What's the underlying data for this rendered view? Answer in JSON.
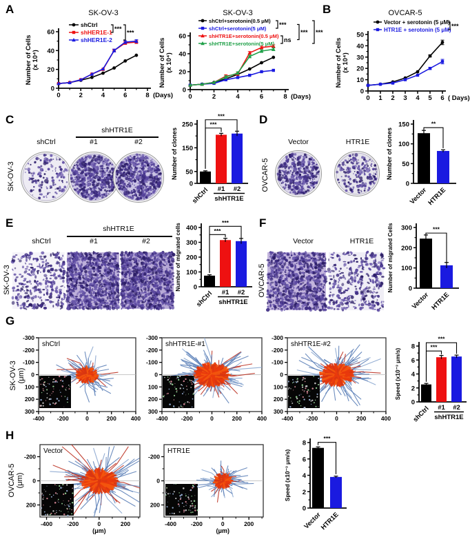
{
  "panels": {
    "A": "A",
    "B": "B",
    "C": "C",
    "D": "D",
    "E": "E",
    "F": "F",
    "G": "G",
    "H": "H"
  },
  "row_labels": {
    "C": "SK-OV-3",
    "D": "OVCAR-5",
    "E": "SK-OV-3",
    "F": "OVCAR-5",
    "G_line1": "SK-OV-3",
    "G_line2": "(μm)",
    "H_line1": "OVCAR-5",
    "H_line2": "(μm)"
  },
  "headers": {
    "C": {
      "group": "shHTR1E",
      "cols": [
        "shCtrl",
        "#1",
        "#2"
      ]
    },
    "D": {
      "cols": [
        "Vector",
        "HTR1E"
      ]
    },
    "E": {
      "group": "shHTR1E",
      "cols": [
        "shCtrl",
        "#1",
        "#2"
      ]
    },
    "F": {
      "cols": [
        "Vector",
        "HTR1E"
      ]
    }
  },
  "colors": {
    "black": "#000000",
    "red": "#ee1111",
    "blue": "#1a1ae0",
    "green": "#1fa048",
    "track_core": "#ea3a0c",
    "track_spike": "#5d81b8",
    "stain_purple": "#4a3794"
  },
  "images": {
    "dot_colors": [
      "#3d2c82",
      "#5a47a0",
      "#2c1e66",
      "#6d5cae"
    ],
    "C": [
      {
        "label": "shCtrl",
        "density": 140,
        "bg": "#eeecf4"
      },
      {
        "label": "#1",
        "density": 540,
        "bg": "#cfc9e6"
      },
      {
        "label": "#2",
        "density": 580,
        "bg": "#c9c2e3"
      }
    ],
    "D": [
      {
        "label": "Vector",
        "density": 380,
        "bg": "#d9d4ea"
      },
      {
        "label": "HTR1E",
        "density": 190,
        "bg": "#e6e4ec"
      }
    ],
    "E": [
      {
        "label": "shCtrl",
        "density": 300,
        "bg": "#f5f3f9"
      },
      {
        "label": "#1",
        "density": 800,
        "bg": "#bdb0da"
      },
      {
        "label": "#2",
        "density": 830,
        "bg": "#b7a9d6"
      }
    ],
    "F": [
      {
        "label": "Vector",
        "density": 780,
        "bg": "#c3b5dd"
      },
      {
        "label": "HTR1E",
        "density": 330,
        "bg": "#f0eef6"
      }
    ]
  },
  "chart_data": [
    {
      "id": "A1",
      "type": "line",
      "title": "SK-OV-3",
      "xlabel": "(Days)",
      "ylabel": "Number of Cells\n(x 10⁴)",
      "xlim": [
        0,
        8
      ],
      "ylim": [
        0,
        60
      ],
      "xticks": [
        0,
        2,
        4,
        6,
        8
      ],
      "yticks": [
        0,
        20,
        40,
        60
      ],
      "x": [
        0,
        1,
        2,
        3,
        4,
        5,
        6,
        7
      ],
      "series": [
        {
          "name": "shCtrl",
          "color": "#000000",
          "marker": "circle",
          "values": [
            5,
            6,
            8.5,
            11.5,
            16,
            21.5,
            29,
            35
          ]
        },
        {
          "name": "shHER1E-1",
          "color": "#ee1111",
          "marker": "square",
          "values": [
            5,
            6,
            9,
            15,
            20,
            40,
            48,
            49
          ],
          "err": [
            0,
            0,
            0,
            0,
            0,
            1.5,
            1.5,
            1.5
          ]
        },
        {
          "name": "shHER1E-2",
          "color": "#1a1ae0",
          "marker": "triangle",
          "values": [
            5,
            6,
            9,
            15,
            20.5,
            40,
            49,
            50
          ],
          "err": [
            0,
            0,
            0,
            0,
            0,
            1.5,
            1.5,
            1.5
          ]
        }
      ],
      "significance": [
        {
          "between": [
            0,
            1
          ],
          "label": "***"
        },
        {
          "between": [
            0,
            2
          ],
          "label": "***"
        }
      ]
    },
    {
      "id": "A2",
      "type": "line",
      "title": "SK-OV-3",
      "xlabel": "(Days)",
      "ylabel": "Number of Cells\n(x 10⁴)",
      "xlim": [
        0,
        8
      ],
      "ylim": [
        0,
        60
      ],
      "xticks": [
        0,
        2,
        4,
        6,
        8
      ],
      "yticks": [
        0,
        20,
        40,
        60
      ],
      "x": [
        0,
        1,
        2,
        3,
        4,
        5,
        6,
        7
      ],
      "series": [
        {
          "name": "shCtrl+serotonin(0.5 μM)",
          "color": "#000000",
          "marker": "circle",
          "values": [
            5,
            6,
            8,
            12,
            17,
            23,
            30,
            36
          ]
        },
        {
          "name": "shCtrl+serotonin(5 μM)",
          "color": "#1a1ae0",
          "marker": "square",
          "values": [
            5,
            6,
            7,
            11,
            13.5,
            16,
            20,
            21.5
          ]
        },
        {
          "name": "shHTR1E+serotonin(0.5 μM)",
          "color": "#ee1111",
          "marker": "triangle",
          "values": [
            5,
            6,
            8,
            15,
            17.5,
            41,
            47,
            48.5
          ],
          "err": [
            0,
            0,
            0,
            1.5,
            1.5,
            1.5,
            1.5,
            1.5
          ]
        },
        {
          "name": "shHTR1E+serotonin(5 μM)",
          "color": "#1fa048",
          "marker": "triangle",
          "values": [
            5,
            6,
            8,
            14,
            18.5,
            37,
            43,
            45
          ],
          "err": [
            0,
            0,
            0,
            1.5,
            1.5,
            1.5,
            1.5,
            1.5
          ]
        }
      ],
      "significance": [
        {
          "between": [
            0,
            1
          ],
          "label": "***"
        },
        {
          "between": [
            2,
            3
          ],
          "label": "ns"
        },
        {
          "between": [
            0,
            2
          ],
          "label": "***"
        },
        {
          "between": [
            0,
            3
          ],
          "label": "***"
        }
      ]
    },
    {
      "id": "B",
      "type": "line",
      "title": "OVCAR-5",
      "xlabel": "( Days)",
      "ylabel": "Number of Cells\n(x 10⁴)",
      "xlim": [
        0,
        6
      ],
      "ylim": [
        0,
        50
      ],
      "xticks": [
        0,
        1,
        2,
        3,
        4,
        5,
        6
      ],
      "yticks": [
        0,
        10,
        20,
        30,
        40,
        50
      ],
      "x": [
        0,
        1,
        2,
        3,
        4,
        5,
        6
      ],
      "series": [
        {
          "name": "Vector + serotonin (5 μM)",
          "color": "#000000",
          "marker": "circle",
          "values": [
            5,
            6,
            8,
            11.5,
            17,
            31,
            43
          ],
          "err": [
            0,
            0,
            0,
            0,
            0,
            1,
            2
          ]
        },
        {
          "name": "HTR1E + serotonin (5 μM)",
          "color": "#1a1ae0",
          "marker": "square",
          "values": [
            5,
            6,
            7,
            10,
            14,
            20,
            26
          ],
          "err": [
            0,
            0,
            0,
            0,
            0,
            1,
            2
          ]
        }
      ],
      "significance": [
        {
          "between": [
            0,
            1
          ],
          "label": "***"
        }
      ]
    },
    {
      "id": "C_bar",
      "type": "bar",
      "ylabel": "Number of clones",
      "ylim": [
        0,
        250
      ],
      "yticks": [
        0,
        50,
        150,
        250
      ],
      "categories": [
        "shCtrl",
        "#1",
        "#2"
      ],
      "values": [
        50,
        205,
        210
      ],
      "errors": [
        3,
        6,
        10
      ],
      "colors": [
        "#000000",
        "#ee1111",
        "#1a1ae0"
      ],
      "group_label": "shHTR1E",
      "group_span": [
        1,
        2
      ],
      "significance": [
        {
          "between": [
            0,
            1
          ],
          "label": "***"
        },
        {
          "between": [
            0,
            2
          ],
          "label": "***"
        }
      ]
    },
    {
      "id": "D_bar",
      "type": "bar",
      "ylabel": "Number of clones",
      "ylim": [
        0,
        150
      ],
      "yticks": [
        0,
        50,
        100,
        150
      ],
      "categories": [
        "Vector",
        "HTR1E"
      ],
      "values": [
        127,
        82
      ],
      "errors": [
        7,
        3
      ],
      "colors": [
        "#000000",
        "#1a1ae0"
      ],
      "significance": [
        {
          "between": [
            0,
            1
          ],
          "label": "**"
        }
      ]
    },
    {
      "id": "E_bar",
      "type": "bar",
      "ylabel": "Number of migrated cells",
      "ylim": [
        0,
        400
      ],
      "yticks": [
        0,
        100,
        200,
        300,
        400
      ],
      "categories": [
        "shCtrl",
        "#1",
        "#2"
      ],
      "values": [
        75,
        315,
        308
      ],
      "errors": [
        6,
        12,
        18
      ],
      "colors": [
        "#000000",
        "#ee1111",
        "#1a1ae0"
      ],
      "group_label": "shHTR1E",
      "group_span": [
        1,
        2
      ],
      "significance": [
        {
          "between": [
            0,
            1
          ],
          "label": "***"
        },
        {
          "between": [
            0,
            2
          ],
          "label": "***"
        }
      ]
    },
    {
      "id": "F_bar",
      "type": "bar",
      "ylabel": "Number of migrated Cells",
      "ylim": [
        0,
        300
      ],
      "yticks": [
        0,
        100,
        200,
        300
      ],
      "categories": [
        "Vector",
        "HTR1E"
      ],
      "values": [
        245,
        113
      ],
      "errors": [
        18,
        14
      ],
      "colors": [
        "#000000",
        "#1a1ae0"
      ],
      "significance": [
        {
          "between": [
            0,
            1
          ],
          "label": "***"
        }
      ]
    },
    {
      "id": "G_speed",
      "type": "bar",
      "ylabel": "Speed (x10⁻³ μm/s)",
      "ylim": [
        0,
        8
      ],
      "yticks": [
        0,
        2,
        4,
        6,
        8
      ],
      "categories": [
        "shCtrl",
        "#1",
        "#2"
      ],
      "values": [
        2.5,
        6.4,
        6.5
      ],
      "errors": [
        0.15,
        0.25,
        0.2
      ],
      "colors": [
        "#000000",
        "#ee1111",
        "#1a1ae0"
      ],
      "group_label": "shHTR1E",
      "group_span": [
        1,
        2
      ],
      "significance": [
        {
          "between": [
            0,
            1
          ],
          "label": "***"
        },
        {
          "between": [
            0,
            2
          ],
          "label": "***"
        }
      ]
    },
    {
      "id": "H_speed",
      "type": "bar",
      "ylabel": "Speed (x10⁻³ μm/s)",
      "ylim": [
        0,
        8
      ],
      "yticks": [
        0,
        2,
        4,
        6,
        8
      ],
      "categories": [
        "Vector",
        "HTR1E"
      ],
      "values": [
        7.35,
        3.8
      ],
      "errors": [
        0.12,
        0.1
      ],
      "colors": [
        "#000000",
        "#1a1ae0"
      ],
      "significance": [
        {
          "between": [
            0,
            1
          ],
          "label": "***"
        }
      ]
    },
    {
      "id": "G1",
      "type": "tracks",
      "title": "shCtrl",
      "xlim": [
        -400,
        400
      ],
      "ylim": [
        -300,
        300
      ],
      "xticks": [
        -400,
        -200,
        0,
        200,
        400
      ],
      "yticks": [
        -300,
        -200,
        -100,
        0,
        100,
        200,
        300
      ],
      "y_inverted": true,
      "n_tracks": 110,
      "spread": [
        46,
        36
      ],
      "seed": 7
    },
    {
      "id": "G2",
      "type": "tracks",
      "title": "shHTR1E-#1",
      "xlim": [
        -400,
        400
      ],
      "ylim": [
        -300,
        300
      ],
      "xticks": [
        -400,
        -200,
        0,
        200,
        400
      ],
      "yticks": [
        -300,
        -200,
        -100,
        0,
        100,
        200,
        300
      ],
      "y_inverted": true,
      "n_tracks": 170,
      "spread": [
        72,
        50
      ],
      "seed": 11
    },
    {
      "id": "G3",
      "type": "tracks",
      "title": "shHTR1E-#2",
      "xlim": [
        -400,
        400
      ],
      "ylim": [
        -300,
        300
      ],
      "xticks": [
        -400,
        -200,
        0,
        200,
        400
      ],
      "yticks": [
        -300,
        -200,
        -100,
        0,
        100,
        200,
        300
      ],
      "y_inverted": true,
      "n_tracks": 160,
      "spread": [
        68,
        48
      ],
      "seed": 13
    },
    {
      "id": "H1",
      "type": "tracks",
      "title": "Vector",
      "xlabel": "(μm)",
      "xlim": [
        -450,
        310
      ],
      "ylim": [
        -300,
        300
      ],
      "xticks": [
        -400,
        -200,
        0,
        200
      ],
      "yticks": [
        -200,
        0,
        200
      ],
      "y_inverted": true,
      "n_tracks": 160,
      "spread": [
        75,
        52
      ],
      "seed": 17
    },
    {
      "id": "H2",
      "type": "tracks",
      "title": "HTR1E",
      "xlabel": "(μm)",
      "xlim": [
        -450,
        310
      ],
      "ylim": [
        -300,
        300
      ],
      "xticks": [
        -400,
        -200,
        0,
        200
      ],
      "yticks": [
        -200,
        0,
        200
      ],
      "y_inverted": true,
      "n_tracks": 100,
      "spread": [
        40,
        32
      ],
      "seed": 19
    }
  ]
}
